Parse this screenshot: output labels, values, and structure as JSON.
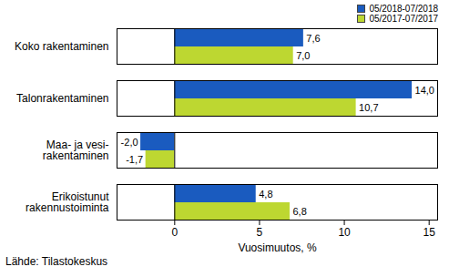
{
  "chart_data": {
    "type": "bar",
    "orientation": "horizontal",
    "categories": [
      "Koko rakentaminen",
      "Talonrakentaminen",
      "Maa- ja vesi-\nrakentaminen",
      "Erikoistunut\nrakennustoiminta"
    ],
    "series": [
      {
        "name": "05/2018-07/2018",
        "color": "#1a5bbf",
        "values": [
          7.6,
          14.0,
          -2.0,
          4.8
        ],
        "value_labels": [
          "7,6",
          "14,0",
          "-2,0",
          "4,8"
        ]
      },
      {
        "name": "05/2017-07/2017",
        "color": "#bdd731",
        "values": [
          7.0,
          10.7,
          -1.7,
          6.8
        ],
        "value_labels": [
          "7,0",
          "10,7",
          "-1,7",
          "6,8"
        ]
      }
    ],
    "xlabel": "Vuosimuutos, %",
    "xlim": [
      -3.4,
      15.5
    ],
    "xticks": [
      0,
      5,
      10,
      15
    ],
    "data_labels": true,
    "legend": "top-right",
    "grid": false,
    "caption": "Lähde: Tilastokeskus"
  }
}
